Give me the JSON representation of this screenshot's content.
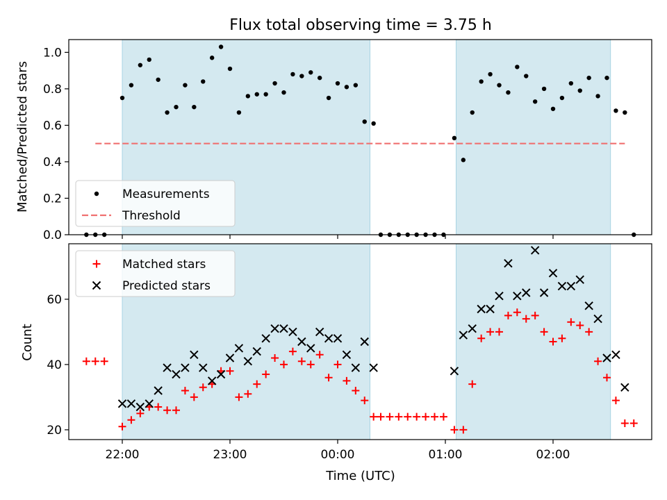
{
  "title": "Flux total observing time = 3.75 h",
  "chart_data": [
    {
      "type": "scatter",
      "panel": "top",
      "ylabel": "Matched/Predicted stars",
      "ylim": [
        0,
        1.07
      ],
      "yticks": [
        "0.0",
        "0.2",
        "0.4",
        "0.6",
        "0.8",
        "1.0"
      ],
      "shaded_intervals": [
        [
          "22:00",
          "00:18"
        ],
        [
          "01:06",
          "02:32"
        ]
      ],
      "threshold": 0.5,
      "threshold_range": [
        "21:45",
        "02:40"
      ],
      "legend": [
        {
          "label": "Measurements",
          "marker": "dot",
          "color": "#000000"
        },
        {
          "label": "Threshold",
          "marker": "dashed-line",
          "color": "#f07070"
        }
      ],
      "legend_position": "lower-left",
      "series": [
        {
          "name": "Measurements",
          "points": [
            [
              "21:40",
              0.0
            ],
            [
              "21:45",
              0.0
            ],
            [
              "21:50",
              0.0
            ],
            [
              "22:00",
              0.75
            ],
            [
              "22:05",
              0.82
            ],
            [
              "22:10",
              0.93
            ],
            [
              "22:15",
              0.96
            ],
            [
              "22:20",
              0.85
            ],
            [
              "22:25",
              0.67
            ],
            [
              "22:30",
              0.7
            ],
            [
              "22:35",
              0.82
            ],
            [
              "22:40",
              0.7
            ],
            [
              "22:45",
              0.84
            ],
            [
              "22:50",
              0.97
            ],
            [
              "22:55",
              1.03
            ],
            [
              "23:00",
              0.91
            ],
            [
              "23:05",
              0.67
            ],
            [
              "23:10",
              0.76
            ],
            [
              "23:15",
              0.77
            ],
            [
              "23:20",
              0.77
            ],
            [
              "23:25",
              0.83
            ],
            [
              "23:30",
              0.78
            ],
            [
              "23:35",
              0.88
            ],
            [
              "23:40",
              0.87
            ],
            [
              "23:45",
              0.89
            ],
            [
              "23:50",
              0.86
            ],
            [
              "23:55",
              0.75
            ],
            [
              "00:00",
              0.83
            ],
            [
              "00:05",
              0.81
            ],
            [
              "00:10",
              0.82
            ],
            [
              "00:15",
              0.62
            ],
            [
              "00:20",
              0.61
            ],
            [
              "00:24",
              0.0
            ],
            [
              "00:29",
              0.0
            ],
            [
              "00:34",
              0.0
            ],
            [
              "00:39",
              0.0
            ],
            [
              "00:44",
              0.0
            ],
            [
              "00:49",
              0.0
            ],
            [
              "00:54",
              0.0
            ],
            [
              "00:59",
              0.0
            ],
            [
              "01:05",
              0.53
            ],
            [
              "01:10",
              0.41
            ],
            [
              "01:15",
              0.67
            ],
            [
              "01:20",
              0.84
            ],
            [
              "01:25",
              0.88
            ],
            [
              "01:30",
              0.82
            ],
            [
              "01:35",
              0.78
            ],
            [
              "01:40",
              0.92
            ],
            [
              "01:45",
              0.87
            ],
            [
              "01:50",
              0.73
            ],
            [
              "01:55",
              0.8
            ],
            [
              "02:00",
              0.69
            ],
            [
              "02:05",
              0.75
            ],
            [
              "02:10",
              0.83
            ],
            [
              "02:15",
              0.79
            ],
            [
              "02:20",
              0.86
            ],
            [
              "02:25",
              0.76
            ],
            [
              "02:30",
              0.86
            ],
            [
              "02:35",
              0.68
            ],
            [
              "02:40",
              0.67
            ],
            [
              "02:45",
              0.0
            ]
          ]
        }
      ]
    },
    {
      "type": "scatter",
      "panel": "bottom",
      "xlabel": "Time (UTC)",
      "ylabel": "Count",
      "ylim": [
        17,
        77
      ],
      "yticks": [
        "20",
        "40",
        "60"
      ],
      "xticks": [
        "22:00",
        "23:00",
        "00:00",
        "01:00",
        "02:00"
      ],
      "shaded_intervals": [
        [
          "22:00",
          "00:18"
        ],
        [
          "01:06",
          "02:32"
        ]
      ],
      "legend": [
        {
          "label": "Matched stars",
          "marker": "plus",
          "color": "#ff0000"
        },
        {
          "label": "Predicted stars",
          "marker": "x",
          "color": "#000000"
        }
      ],
      "legend_position": "upper-left",
      "series": [
        {
          "name": "Matched stars",
          "points": [
            [
              "21:40",
              41
            ],
            [
              "21:45",
              41
            ],
            [
              "21:50",
              41
            ],
            [
              "22:00",
              21
            ],
            [
              "22:05",
              23
            ],
            [
              "22:10",
              25
            ],
            [
              "22:15",
              27
            ],
            [
              "22:20",
              27
            ],
            [
              "22:25",
              26
            ],
            [
              "22:30",
              26
            ],
            [
              "22:35",
              32
            ],
            [
              "22:40",
              30
            ],
            [
              "22:45",
              33
            ],
            [
              "22:50",
              34
            ],
            [
              "22:55",
              38
            ],
            [
              "23:00",
              38
            ],
            [
              "23:05",
              30
            ],
            [
              "23:10",
              31
            ],
            [
              "23:15",
              34
            ],
            [
              "23:20",
              37
            ],
            [
              "23:25",
              42
            ],
            [
              "23:30",
              40
            ],
            [
              "23:35",
              44
            ],
            [
              "23:40",
              41
            ],
            [
              "23:45",
              40
            ],
            [
              "23:50",
              43
            ],
            [
              "23:55",
              36
            ],
            [
              "00:00",
              40
            ],
            [
              "00:05",
              35
            ],
            [
              "00:10",
              32
            ],
            [
              "00:15",
              29
            ],
            [
              "00:20",
              24
            ],
            [
              "00:24",
              24
            ],
            [
              "00:29",
              24
            ],
            [
              "00:34",
              24
            ],
            [
              "00:39",
              24
            ],
            [
              "00:44",
              24
            ],
            [
              "00:49",
              24
            ],
            [
              "00:54",
              24
            ],
            [
              "00:59",
              24
            ],
            [
              "01:05",
              20
            ],
            [
              "01:10",
              20
            ],
            [
              "01:15",
              34
            ],
            [
              "01:20",
              48
            ],
            [
              "01:25",
              50
            ],
            [
              "01:30",
              50
            ],
            [
              "01:35",
              55
            ],
            [
              "01:40",
              56
            ],
            [
              "01:45",
              54
            ],
            [
              "01:50",
              55
            ],
            [
              "01:55",
              50
            ],
            [
              "02:00",
              47
            ],
            [
              "02:05",
              48
            ],
            [
              "02:10",
              53
            ],
            [
              "02:15",
              52
            ],
            [
              "02:20",
              50
            ],
            [
              "02:25",
              41
            ],
            [
              "02:30",
              36
            ],
            [
              "02:35",
              29
            ],
            [
              "02:40",
              22
            ],
            [
              "02:45",
              22
            ]
          ]
        },
        {
          "name": "Predicted stars",
          "points": [
            [
              "22:00",
              28
            ],
            [
              "22:05",
              28
            ],
            [
              "22:10",
              27
            ],
            [
              "22:15",
              28
            ],
            [
              "22:20",
              32
            ],
            [
              "22:25",
              39
            ],
            [
              "22:30",
              37
            ],
            [
              "22:35",
              39
            ],
            [
              "22:40",
              43
            ],
            [
              "22:45",
              39
            ],
            [
              "22:50",
              35
            ],
            [
              "22:55",
              37
            ],
            [
              "23:00",
              42
            ],
            [
              "23:05",
              45
            ],
            [
              "23:10",
              41
            ],
            [
              "23:15",
              44
            ],
            [
              "23:20",
              48
            ],
            [
              "23:25",
              51
            ],
            [
              "23:30",
              51
            ],
            [
              "23:35",
              50
            ],
            [
              "23:40",
              47
            ],
            [
              "23:45",
              45
            ],
            [
              "23:50",
              50
            ],
            [
              "23:55",
              48
            ],
            [
              "00:00",
              48
            ],
            [
              "00:05",
              43
            ],
            [
              "00:10",
              39
            ],
            [
              "00:15",
              47
            ],
            [
              "00:20",
              39
            ],
            [
              "01:05",
              38
            ],
            [
              "01:10",
              49
            ],
            [
              "01:15",
              51
            ],
            [
              "01:20",
              57
            ],
            [
              "01:25",
              57
            ],
            [
              "01:30",
              61
            ],
            [
              "01:35",
              71
            ],
            [
              "01:40",
              61
            ],
            [
              "01:45",
              62
            ],
            [
              "01:50",
              75
            ],
            [
              "01:55",
              62
            ],
            [
              "02:00",
              68
            ],
            [
              "02:05",
              64
            ],
            [
              "02:10",
              64
            ],
            [
              "02:15",
              66
            ],
            [
              "02:20",
              58
            ],
            [
              "02:25",
              54
            ],
            [
              "02:30",
              42
            ],
            [
              "02:35",
              43
            ],
            [
              "02:40",
              33
            ]
          ]
        }
      ]
    }
  ]
}
